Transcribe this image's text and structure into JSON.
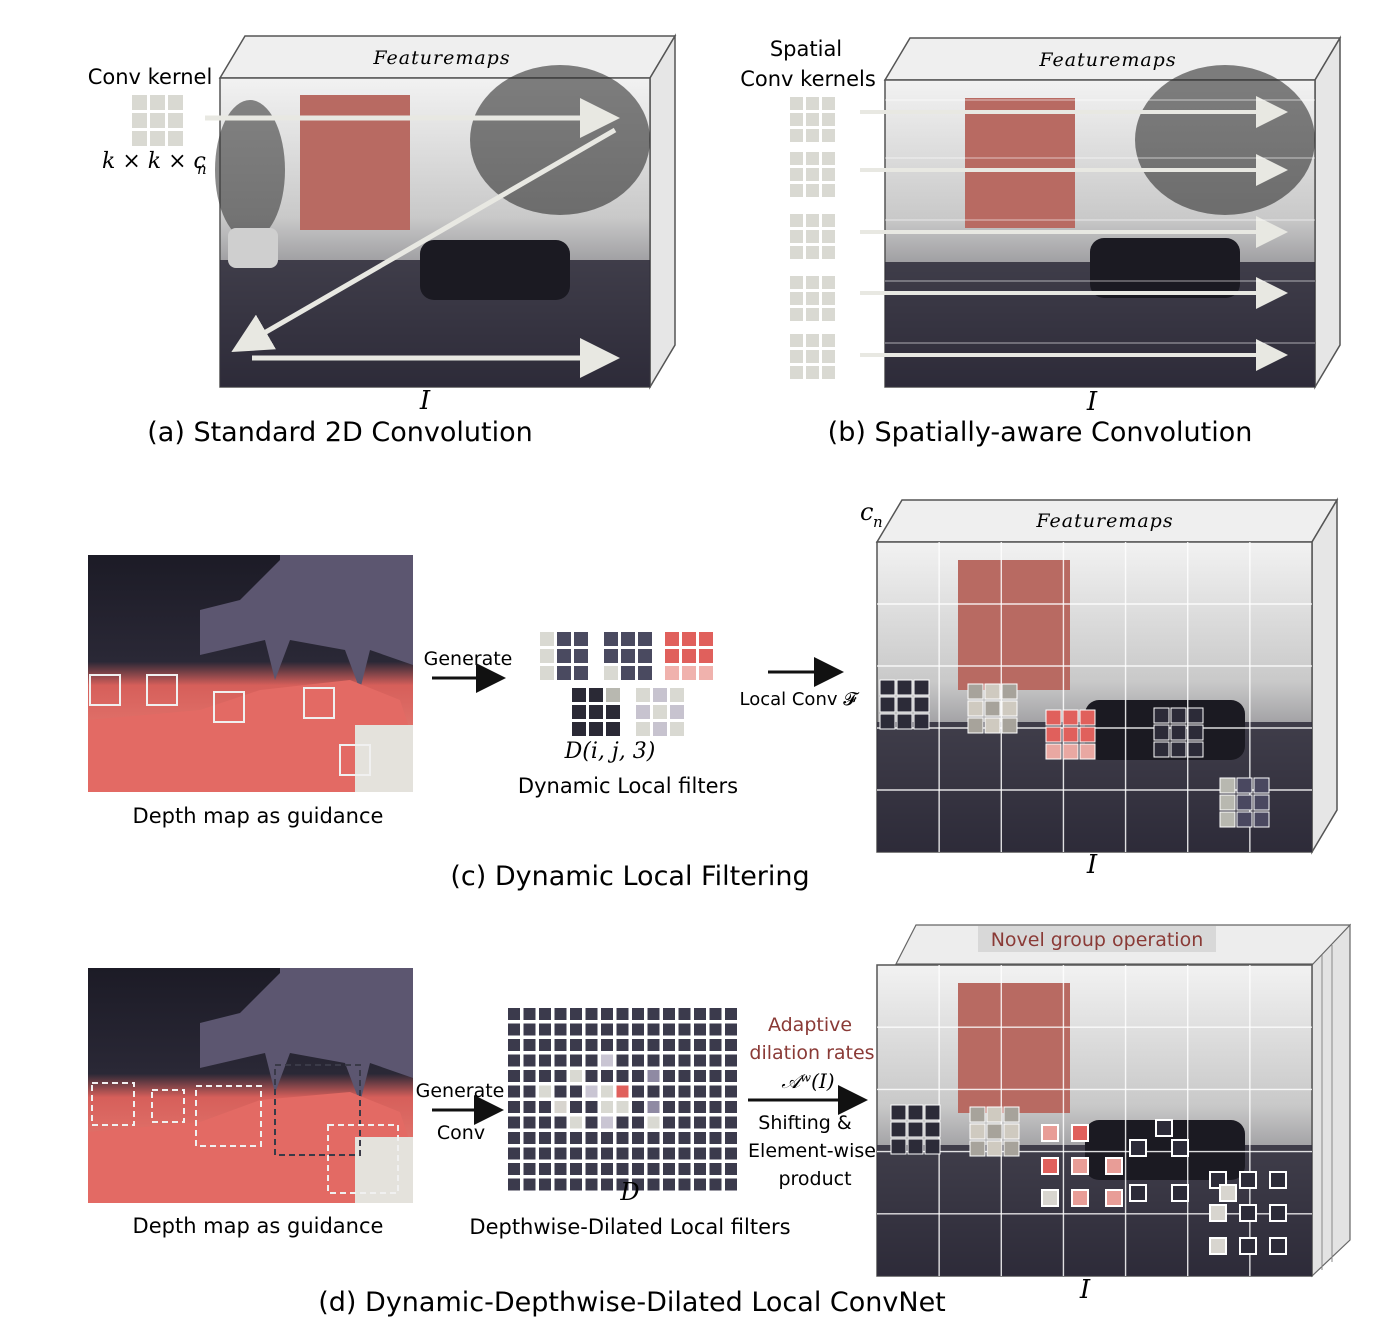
{
  "panel_a": {
    "header": "Featuremaps",
    "kernel_label": "Conv kernel",
    "kernel_dims": "k × k × c",
    "kernel_dims_sub": "n",
    "input_label": "I",
    "caption": "(a) Standard 2D Convolution"
  },
  "panel_b": {
    "header": "Featuremaps",
    "kernel_label_1": "Spatial",
    "kernel_label_2": "Conv kernels",
    "input_label": "I",
    "caption": "(b) Spatially-aware Convolution"
  },
  "panel_c": {
    "header": "Featuremaps",
    "channel_label": "c",
    "channel_sub": "n",
    "depth_caption": "Depth map as guidance",
    "generate_label": "Generate",
    "filter_math": "D(i, j, 3)",
    "filter_label": "Dynamic Local filters",
    "local_conv_label": "Local Conv 𝓕",
    "input_label": "I",
    "caption": "(c) Dynamic Local Filtering"
  },
  "panel_d": {
    "header": "Novel group operation",
    "depth_caption": "Depth map as guidance",
    "generate_label_1": "Generate",
    "generate_label_2": "Conv",
    "grid_math": "D",
    "grid_label": "Depthwise-Dilated Local filters",
    "adaptive_1": "Adaptive",
    "adaptive_2": "dilation rates",
    "adaptive_math": "𝒜ʷ(I)",
    "shift_1": "Shifting &",
    "shift_2": "Element-wise",
    "shift_3": "product",
    "input_label": "I",
    "caption": "(d) Dynamic-Depthwise-Dilated Local ConvNet"
  },
  "colors": {
    "accent_red": "#e0605c",
    "dark_kernel": "#4a4a60",
    "light_kernel": "#d9d9d2",
    "depth_dark": "#1c1b26",
    "depth_purple": "#5c5670",
    "depth_red": "#e36a64",
    "adaptive_text": "#8a3a36"
  }
}
